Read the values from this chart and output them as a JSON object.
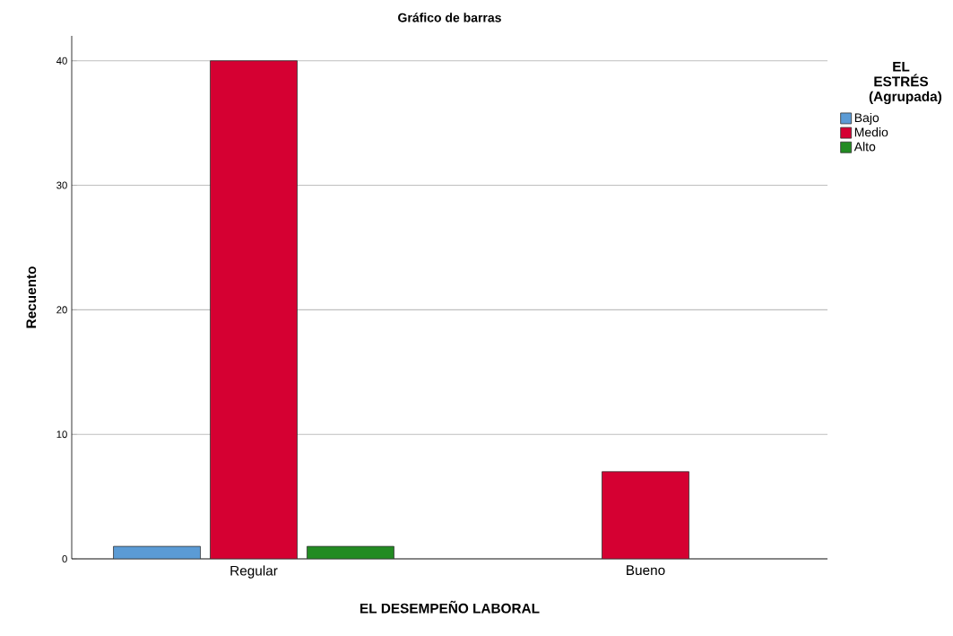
{
  "chart_data": {
    "type": "bar",
    "title": "Gráfico de barras",
    "xlabel": "EL DESEMPEÑO LABORAL",
    "ylabel": "Recuento",
    "legend_title": "EL ESTRÉS (Agrupada)",
    "categories": [
      "Regular",
      "Bueno"
    ],
    "series": [
      {
        "name": "Bajo",
        "color": "#5b9bd5",
        "values": [
          1,
          null
        ]
      },
      {
        "name": "Medio",
        "color": "#d50032",
        "values": [
          40,
          7
        ]
      },
      {
        "name": "Alto",
        "color": "#228b22",
        "values": [
          1,
          null
        ]
      }
    ],
    "ylim": [
      0,
      42
    ],
    "yticks": [
      0,
      10,
      20,
      30,
      40
    ],
    "grid": "y",
    "legend": "top right"
  }
}
